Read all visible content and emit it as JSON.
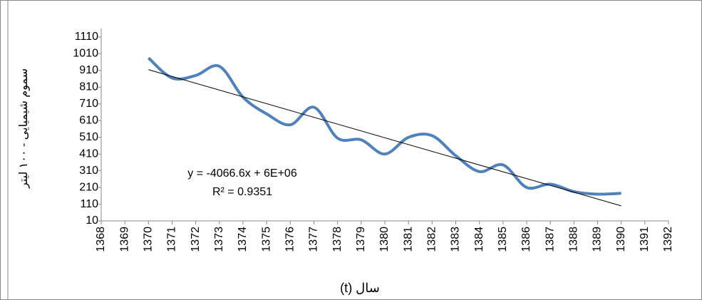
{
  "chart_data": {
    "type": "line",
    "x_label": "سال (t)",
    "y_label": "سموم شیمیایی - ۱۰۰ لیتر",
    "x": [
      1370,
      1371,
      1372,
      1373,
      1374,
      1375,
      1376,
      1377,
      1378,
      1379,
      1380,
      1381,
      1382,
      1383,
      1384,
      1385,
      1386,
      1387,
      1388,
      1389,
      1390
    ],
    "series": [
      {
        "color": "#4f81bd",
        "values": [
          985,
          865,
          880,
          935,
          750,
          650,
          585,
          690,
          505,
          495,
          410,
          510,
          520,
          400,
          305,
          345,
          210,
          230,
          185,
          170,
          175
        ]
      }
    ],
    "trendline": {
      "x": [
        1370,
        1390
      ],
      "values": [
        915,
        100
      ],
      "color": "#000000"
    },
    "annotations": [
      "y = -4066.6x + 6E+06",
      "R² = 0.9351"
    ],
    "xlim": [
      1368,
      1392
    ],
    "xticks": [
      1368,
      1369,
      1370,
      1371,
      1372,
      1373,
      1374,
      1375,
      1376,
      1377,
      1378,
      1379,
      1380,
      1381,
      1382,
      1383,
      1384,
      1385,
      1386,
      1387,
      1388,
      1389,
      1390,
      1391,
      1392
    ],
    "ylim": [
      10,
      1110
    ],
    "yticks": [
      10,
      110,
      210,
      310,
      410,
      510,
      610,
      710,
      810,
      910,
      1010,
      1110
    ],
    "smooth": true
  }
}
